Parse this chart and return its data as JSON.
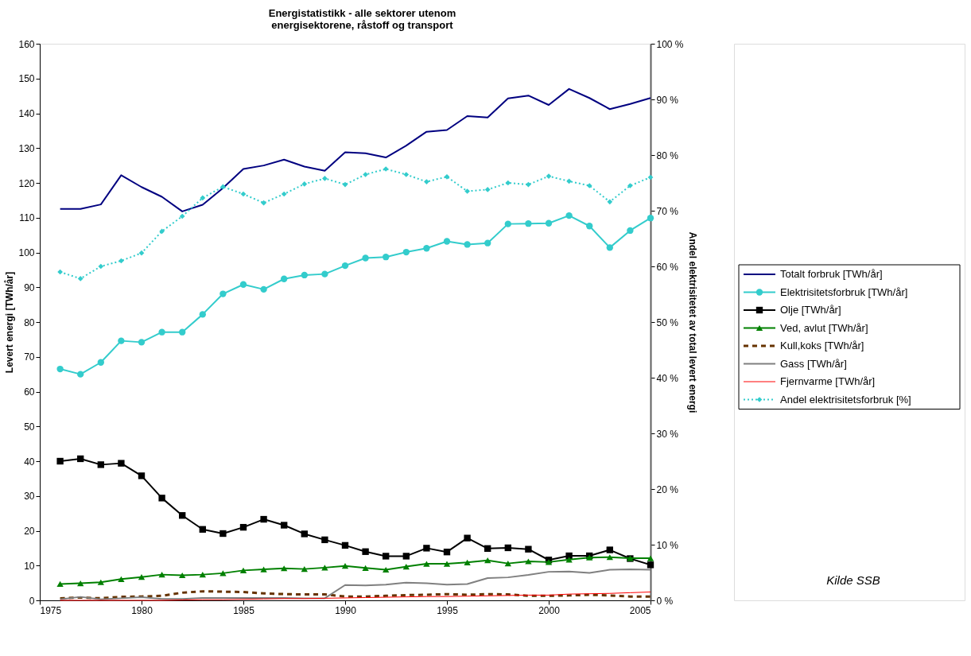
{
  "chart_data": {
    "type": "line",
    "title": "Energistatistikk - alle sektorer utenom\nenergisektorene, råstoff og transport",
    "ylabel": "Levert energi [TWh/år]",
    "y2label": "Andel elektrisitetet av total levert energi",
    "x": [
      1976,
      1977,
      1978,
      1979,
      1980,
      1981,
      1982,
      1983,
      1984,
      1985,
      1986,
      1987,
      1988,
      1989,
      1990,
      1991,
      1992,
      1993,
      1994,
      1995,
      1996,
      1997,
      1998,
      1999,
      2000,
      2001,
      2002,
      2003,
      2004,
      2005
    ],
    "xlim": [
      1975,
      2005
    ],
    "xticks": [
      1975,
      1980,
      1985,
      1990,
      1995,
      2000,
      2005
    ],
    "ylim": [
      0,
      160
    ],
    "yticks": [
      0,
      10,
      20,
      30,
      40,
      50,
      60,
      70,
      80,
      90,
      100,
      110,
      120,
      130,
      140,
      150,
      160
    ],
    "y2lim": [
      0,
      100
    ],
    "y2ticks": [
      {
        "value": 0,
        "label": "0 %"
      },
      {
        "value": 10,
        "label": "10 %"
      },
      {
        "value": 20,
        "label": "20 %"
      },
      {
        "value": 30,
        "label": "30 %"
      },
      {
        "value": 40,
        "label": "40 %"
      },
      {
        "value": 50,
        "label": "50 %"
      },
      {
        "value": 60,
        "label": "60 %"
      },
      {
        "value": 70,
        "label": "70 %"
      },
      {
        "value": 80,
        "label": "80 %"
      },
      {
        "value": 90,
        "label": "90 %"
      },
      {
        "value": 100,
        "label": "100 %"
      }
    ],
    "grid": false,
    "legend": "right",
    "annotations": [
      "Kilde SSB"
    ],
    "series": [
      {
        "name": "Totalt forbruk [TWh/år]",
        "color": "#000080",
        "marker": "none",
        "line_style": "solid",
        "values": [
          112.5,
          112.5,
          113.8,
          122.2,
          118.8,
          116,
          111.8,
          113.7,
          118.5,
          124,
          125,
          126.7,
          124.7,
          123.5,
          128.8,
          128.5,
          127.3,
          130.7,
          134.7,
          135.2,
          139.2,
          138.8,
          144.3,
          145.1,
          142.4,
          147,
          144.4,
          141.2,
          142.7,
          144.4
        ]
      },
      {
        "name": "Elektrisitetsforbruk [TWh/år]",
        "color": "#33cccc",
        "marker": "circle",
        "line_style": "solid",
        "values": [
          66.5,
          65,
          68.4,
          74.6,
          74.2,
          77.1,
          77.1,
          82.2,
          88.1,
          90.8,
          89.4,
          92.4,
          93.5,
          93.8,
          96.2,
          98.4,
          98.7,
          100.1,
          101.2,
          103.2,
          102.3,
          102.7,
          108.2,
          108.3,
          108.4,
          110.6,
          107.6,
          101.4,
          106.3,
          109.9
        ]
      },
      {
        "name": "Olje [TWh/år]",
        "color": "#000000",
        "marker": "square",
        "line_style": "solid",
        "values": [
          40,
          40.7,
          39,
          39.4,
          35.8,
          29.4,
          24.4,
          20.4,
          19.2,
          21,
          23.3,
          21.6,
          19.1,
          17.4,
          15.8,
          14,
          12.7,
          12.7,
          15,
          13.9,
          17.9,
          14.9,
          15.1,
          14.7,
          11.6,
          12.8,
          12.8,
          14.5,
          12,
          10.2
        ]
      },
      {
        "name": "Ved, avlut [TWh/år]",
        "color": "#008000",
        "marker": "triangle",
        "line_style": "solid",
        "values": [
          4.7,
          4.9,
          5.2,
          6.1,
          6.7,
          7.4,
          7.2,
          7.4,
          7.8,
          8.6,
          8.9,
          9.2,
          9,
          9.4,
          9.9,
          9.3,
          8.8,
          9.7,
          10.5,
          10.5,
          10.9,
          11.5,
          10.6,
          11.2,
          11,
          11.7,
          12.3,
          12.4,
          12.1,
          12.1
        ]
      },
      {
        "name": "Kull,koks [TWh/år]",
        "color": "#663300",
        "marker": "none",
        "line_style": "dashed",
        "values": [
          0.6,
          0.8,
          0.6,
          1,
          1.1,
          1.3,
          2.2,
          2.6,
          2.5,
          2.4,
          2,
          1.8,
          1.7,
          1.7,
          1.1,
          1.1,
          1.3,
          1.5,
          1.6,
          1.8,
          1.6,
          1.8,
          1.7,
          1.3,
          1.3,
          1.4,
          1.6,
          1.4,
          1.1,
          1.1
        ]
      },
      {
        "name": "Gass [TWh/år]",
        "color": "#808080",
        "marker": "none",
        "line_style": "solid",
        "values": [
          0.3,
          1,
          0.3,
          0.6,
          0.9,
          0.4,
          0.4,
          0.7,
          0.7,
          0.7,
          0.7,
          0.7,
          0.6,
          0.6,
          4.4,
          4.3,
          4.5,
          5.1,
          4.9,
          4.5,
          4.7,
          6.4,
          6.6,
          7.3,
          8.2,
          8.3,
          7.9,
          8.8,
          8.9,
          8.8
        ]
      },
      {
        "name": "Fjernvarme [TWh/år]",
        "color": "#ff0000",
        "marker": "none",
        "line_style": "solid",
        "values": [
          0,
          0,
          0,
          0,
          0,
          0,
          0.1,
          0.2,
          0.2,
          0.3,
          0.4,
          0.5,
          0.5,
          0.6,
          0.7,
          0.8,
          0.9,
          1,
          1.1,
          1.1,
          1.2,
          1.3,
          1.4,
          1.5,
          1.5,
          1.8,
          1.9,
          2,
          2.2,
          2.4
        ]
      },
      {
        "name": "Andel elektrisitetsforbruk [%]",
        "color": "#33cccc",
        "marker": "diamond",
        "line_style": "dotted",
        "axis": "y2",
        "values": [
          59,
          57.8,
          60,
          61,
          62.4,
          66.3,
          69,
          72.3,
          74.3,
          73,
          71.4,
          73,
          74.8,
          75.8,
          74.7,
          76.5,
          77.5,
          76.5,
          75.2,
          76.1,
          73.5,
          73.8,
          75,
          74.7,
          76.2,
          75.3,
          74.5,
          71.6,
          74.5,
          76
        ]
      }
    ]
  }
}
